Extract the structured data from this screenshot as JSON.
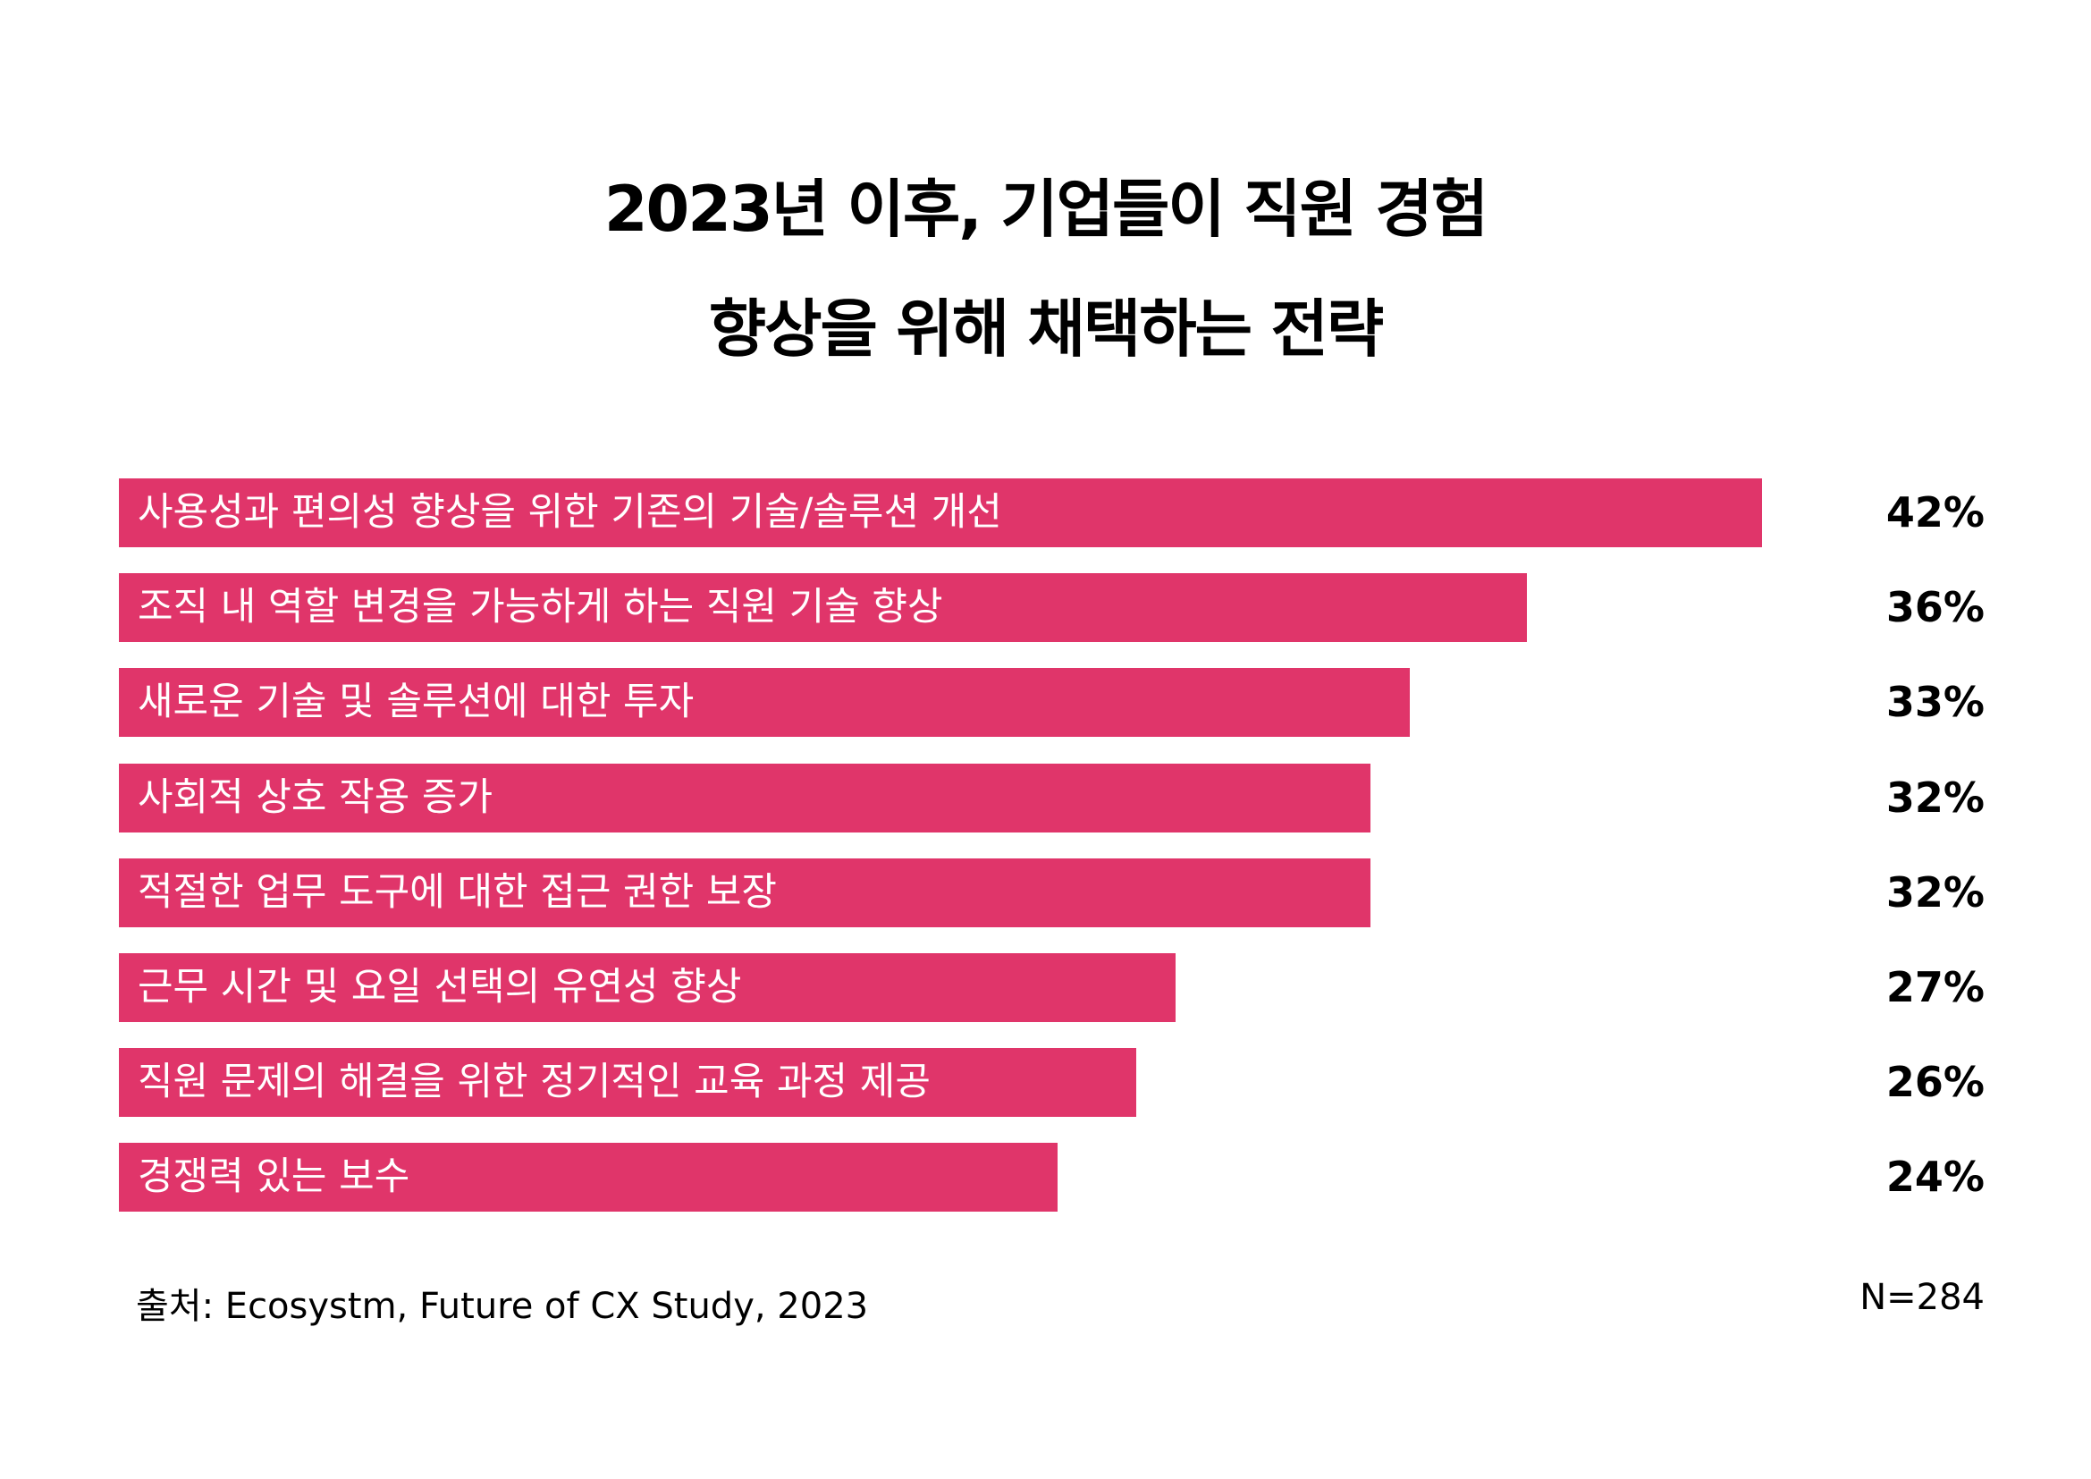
{
  "bar_color": "#E0356A",
  "chart_data": {
    "type": "bar",
    "orientation": "horizontal",
    "title_lines": [
      "2023년 이후, 기업들이 직원 경험",
      "향상을 위해 채택하는 전략"
    ],
    "categories": [
      "사용성과 편의성 향상을 위한 기존의 기술/솔루션 개선",
      "조직 내 역할 변경을 가능하게 하는 직원 기술 향상",
      "새로운 기술 및 솔루션에 대한 투자",
      "사회적 상호 작용 증가",
      "적절한 업무 도구에 대한 접근 권한 보장",
      "근무 시간 및 요일 선택의 유연성 향상",
      "직원 문제의 해결을 위한 정기적인 교육 과정 제공",
      "경쟁력 있는 보수"
    ],
    "values": [
      42,
      36,
      33,
      32,
      32,
      27,
      26,
      24
    ],
    "value_labels": [
      "42%",
      "36%",
      "33%",
      "32%",
      "32%",
      "27%",
      "26%",
      "24%"
    ],
    "grid": false,
    "legend": "none"
  },
  "footer": {
    "source": "출처: Ecosystm, Future of CX Study, 2023",
    "sample": "N=284"
  }
}
